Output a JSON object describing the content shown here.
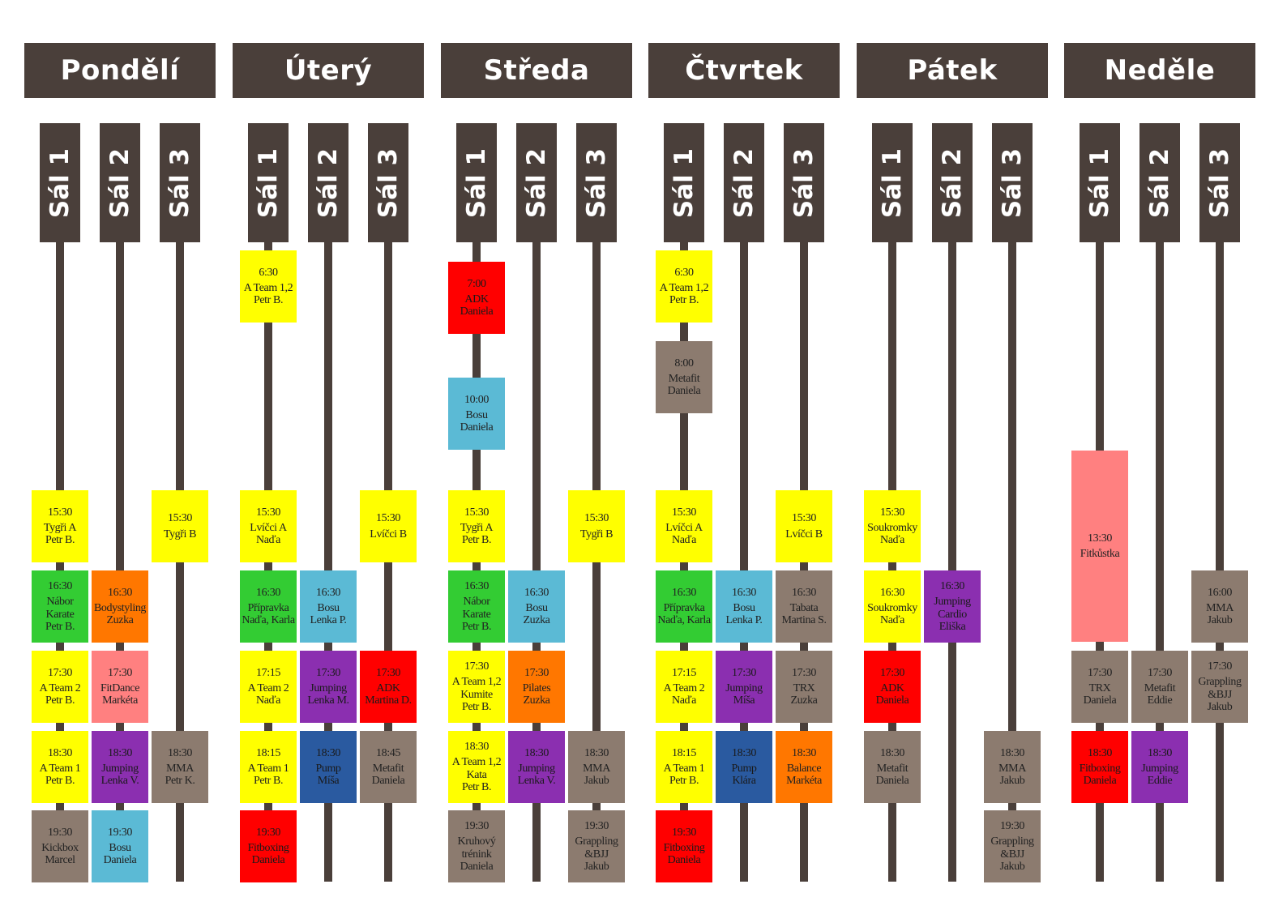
{
  "days": [
    {
      "name": "Pondělí",
      "rooms": [
        {
          "label": "Sál 1",
          "classes": [
            {
              "time": "15:30",
              "name": "Tygři A",
              "trainer": "Petr B.",
              "color": "yellow"
            },
            {
              "time": "16:30",
              "name": "Nábor Karate",
              "trainer": "Petr B.",
              "color": "green"
            },
            {
              "time": "17:30",
              "name": "A Team 2",
              "trainer": "Petr B.",
              "color": "yellow"
            },
            {
              "time": "18:30",
              "name": "A Team 1",
              "trainer": "Petr B.",
              "color": "yellow"
            },
            {
              "time": "19:30",
              "name": "Kickbox",
              "trainer": "Marcel",
              "color": "brown"
            }
          ]
        },
        {
          "label": "Sál 2",
          "classes": [
            {
              "time": "16:30",
              "name": "Bodystyling",
              "trainer": "Zuzka",
              "color": "orange"
            },
            {
              "time": "17:30",
              "name": "FitDance",
              "trainer": "Markéta",
              "color": "pink"
            },
            {
              "time": "18:30",
              "name": "Jumping",
              "trainer": "Lenka V.",
              "color": "purple"
            },
            {
              "time": "19:30",
              "name": "Bosu",
              "trainer": "Daniela",
              "color": "cyan"
            }
          ]
        },
        {
          "label": "Sál 3",
          "classes": [
            {
              "time": "15:30",
              "name": "Tygři B",
              "trainer": "",
              "color": "yellow"
            },
            {
              "time": "18:30",
              "name": "MMA",
              "trainer": "Petr K.",
              "color": "brown"
            }
          ]
        }
      ]
    },
    {
      "name": "Úterý",
      "rooms": [
        {
          "label": "Sál 1",
          "classes": [
            {
              "time": "6:30",
              "name": "A Team 1,2",
              "trainer": "Petr B.",
              "color": "yellow"
            },
            {
              "time": "15:30",
              "name": "Lvíčci A",
              "trainer": "Naďa",
              "color": "yellow"
            },
            {
              "time": "16:30",
              "name": "Přípravka",
              "trainer": "Naďa, Karla",
              "color": "green"
            },
            {
              "time": "17:15",
              "name": "A Team 2",
              "trainer": "Naďa",
              "color": "yellow"
            },
            {
              "time": "18:15",
              "name": "A Team 1",
              "trainer": "Petr B.",
              "color": "yellow"
            },
            {
              "time": "19:30",
              "name": "Fitboxing",
              "trainer": "Daniela",
              "color": "red"
            }
          ]
        },
        {
          "label": "Sál 2",
          "classes": [
            {
              "time": "16:30",
              "name": "Bosu",
              "trainer": "Lenka P.",
              "color": "cyan"
            },
            {
              "time": "17:30",
              "name": "Jumping",
              "trainer": "Lenka M.",
              "color": "purple"
            },
            {
              "time": "18:30",
              "name": "Pump",
              "trainer": "Míša",
              "color": "blue"
            }
          ]
        },
        {
          "label": "Sál 3",
          "classes": [
            {
              "time": "15:30",
              "name": "Lvíčci B",
              "trainer": "",
              "color": "yellow"
            },
            {
              "time": "17:30",
              "name": "ADK",
              "trainer": "Martina D.",
              "color": "red"
            },
            {
              "time": "18:45",
              "name": "Metafit",
              "trainer": "Daniela",
              "color": "brown"
            }
          ]
        }
      ]
    },
    {
      "name": "Středa",
      "rooms": [
        {
          "label": "Sál 1",
          "classes": [
            {
              "time": "7:00",
              "name": "ADK",
              "trainer": "Daniela",
              "color": "red"
            },
            {
              "time": "10:00",
              "name": "Bosu",
              "trainer": "Daniela",
              "color": "cyan"
            },
            {
              "time": "15:30",
              "name": "Tygři A",
              "trainer": "Petr B.",
              "color": "yellow"
            },
            {
              "time": "16:30",
              "name": "Nábor Karate",
              "trainer": "Petr B.",
              "color": "green"
            },
            {
              "time": "17:30",
              "name": "A Team 1,2 Kumite",
              "trainer": "Petr B.",
              "color": "yellow"
            },
            {
              "time": "18:30",
              "name": "A Team 1,2 Kata",
              "trainer": "Petr B.",
              "color": "yellow"
            },
            {
              "time": "19:30",
              "name": "Kruhový trénink",
              "trainer": "Daniela",
              "color": "brown"
            }
          ]
        },
        {
          "label": "Sál 2",
          "classes": [
            {
              "time": "16:30",
              "name": "Bosu",
              "trainer": "Zuzka",
              "color": "cyan"
            },
            {
              "time": "17:30",
              "name": "Pilates",
              "trainer": "Zuzka",
              "color": "orange"
            },
            {
              "time": "18:30",
              "name": "Jumping",
              "trainer": "Lenka V.",
              "color": "purple"
            }
          ]
        },
        {
          "label": "Sál 3",
          "classes": [
            {
              "time": "15:30",
              "name": "Tygři B",
              "trainer": "",
              "color": "yellow"
            },
            {
              "time": "18:30",
              "name": "MMA",
              "trainer": "Jakub",
              "color": "brown"
            },
            {
              "time": "19:30",
              "name": "Grappling &BJJ",
              "trainer": "Jakub",
              "color": "brown"
            }
          ]
        }
      ]
    },
    {
      "name": "Čtvrtek",
      "rooms": [
        {
          "label": "Sál 1",
          "classes": [
            {
              "time": "6:30",
              "name": "A Team 1,2",
              "trainer": "Petr B.",
              "color": "yellow"
            },
            {
              "time": "8:00",
              "name": "Metafit",
              "trainer": "Daniela",
              "color": "brown"
            },
            {
              "time": "15:30",
              "name": "Lvíčci A",
              "trainer": "Naďa",
              "color": "yellow"
            },
            {
              "time": "16:30",
              "name": "Přípravka",
              "trainer": "Naďa, Karla",
              "color": "green"
            },
            {
              "time": "17:15",
              "name": "A Team 2",
              "trainer": "Naďa",
              "color": "yellow"
            },
            {
              "time": "18:15",
              "name": "A Team 1",
              "trainer": "Petr B.",
              "color": "yellow"
            },
            {
              "time": "19:30",
              "name": "Fitboxing",
              "trainer": "Daniela",
              "color": "red"
            }
          ]
        },
        {
          "label": "Sál 2",
          "classes": [
            {
              "time": "16:30",
              "name": "Bosu",
              "trainer": "Lenka P.",
              "color": "cyan"
            },
            {
              "time": "17:30",
              "name": "Jumping",
              "trainer": "Míša",
              "color": "purple"
            },
            {
              "time": "18:30",
              "name": "Pump",
              "trainer": "Klára",
              "color": "blue"
            }
          ]
        },
        {
          "label": "Sál 3",
          "classes": [
            {
              "time": "15:30",
              "name": "Lvíčci B",
              "trainer": "",
              "color": "yellow"
            },
            {
              "time": "16:30",
              "name": "Tabata",
              "trainer": "Martina S.",
              "color": "brown"
            },
            {
              "time": "17:30",
              "name": "TRX",
              "trainer": "Zuzka",
              "color": "brown"
            },
            {
              "time": "18:30",
              "name": "Balance",
              "trainer": "Markéta",
              "color": "orange"
            }
          ]
        }
      ]
    },
    {
      "name": "Pátek",
      "rooms": [
        {
          "label": "Sál 1",
          "classes": [
            {
              "time": "15:30",
              "name": "Soukromky",
              "trainer": "Naďa",
              "color": "yellow"
            },
            {
              "time": "16:30",
              "name": "Soukromky",
              "trainer": "Naďa",
              "color": "yellow"
            },
            {
              "time": "17:30",
              "name": "ADK",
              "trainer": "Daniela",
              "color": "red"
            },
            {
              "time": "18:30",
              "name": "Metafit",
              "trainer": "Daniela",
              "color": "brown"
            }
          ]
        },
        {
          "label": "Sál 2",
          "classes": [
            {
              "time": "16:30",
              "name": "Jumping Cardio",
              "trainer": "Eliška",
              "color": "purple"
            }
          ]
        },
        {
          "label": "Sál 3",
          "classes": [
            {
              "time": "18:30",
              "name": "MMA",
              "trainer": "Jakub",
              "color": "brown"
            },
            {
              "time": "19:30",
              "name": "Grappling &BJJ",
              "trainer": "Jakub",
              "color": "brown"
            }
          ]
        }
      ]
    },
    {
      "name": "Neděle",
      "rooms": [
        {
          "label": "Sál 1",
          "classes": [
            {
              "time": "13:30",
              "name": "Fitkůstka",
              "trainer": "",
              "color": "pink"
            },
            {
              "time": "17:30",
              "name": "TRX",
              "trainer": "Daniela",
              "color": "brown"
            },
            {
              "time": "18:30",
              "name": "Fitboxing",
              "trainer": "Daniela",
              "color": "red"
            }
          ]
        },
        {
          "label": "Sál 2",
          "classes": [
            {
              "time": "17:30",
              "name": "Metafit",
              "trainer": "Eddie",
              "color": "brown"
            },
            {
              "time": "18:30",
              "name": "Jumping",
              "trainer": "Eddie",
              "color": "purple"
            }
          ]
        },
        {
          "label": "Sál 3",
          "classes": [
            {
              "time": "16:00",
              "name": "MMA",
              "trainer": "Jakub",
              "color": "brown"
            },
            {
              "time": "17:30",
              "name": "Grappling &BJJ",
              "trainer": "Jakub",
              "color": "brown"
            }
          ]
        }
      ]
    }
  ]
}
